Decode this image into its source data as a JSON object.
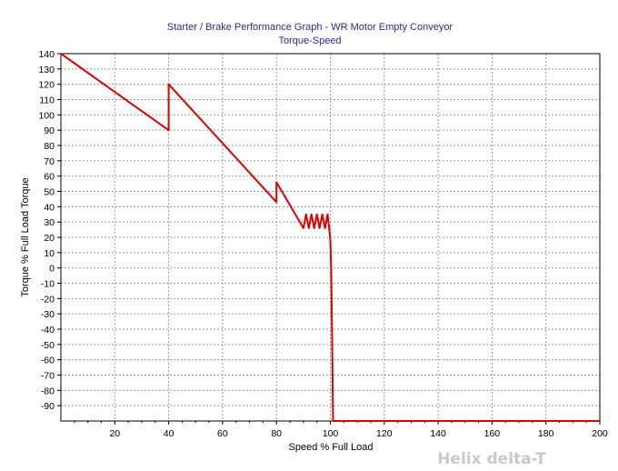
{
  "chart_data": {
    "type": "line",
    "title": "Starter / Brake Performance Graph - WR Motor Empty Conveyor",
    "subtitle": "Torque-Speed",
    "xlabel": "Speed % Full Load",
    "ylabel": "Torque % Full Load Torque",
    "xlim": [
      0,
      200
    ],
    "ylim": [
      -100,
      140
    ],
    "x_ticks": [
      20,
      40,
      60,
      80,
      100,
      120,
      140,
      160,
      180,
      200
    ],
    "y_ticks": [
      140,
      130,
      120,
      110,
      100,
      90,
      80,
      70,
      60,
      50,
      40,
      30,
      20,
      10,
      0,
      -10,
      -20,
      -30,
      -40,
      -50,
      -60,
      -70,
      -80,
      -90
    ],
    "grid": true,
    "series": [
      {
        "color": "#e00000",
        "x": [
          0,
          40,
          40,
          80,
          80,
          90,
          91,
          92,
          93,
          94,
          95,
          96,
          97,
          98,
          99,
          99.5,
          100,
          100.3,
          100.6,
          101,
          101,
          200
        ],
        "y": [
          140,
          90,
          120,
          43,
          56,
          26,
          35,
          26,
          35,
          26,
          35,
          26,
          35,
          26,
          35,
          27,
          18,
          0,
          -40,
          -100,
          -100,
          -100
        ]
      }
    ]
  },
  "watermark": "Helix delta-T"
}
